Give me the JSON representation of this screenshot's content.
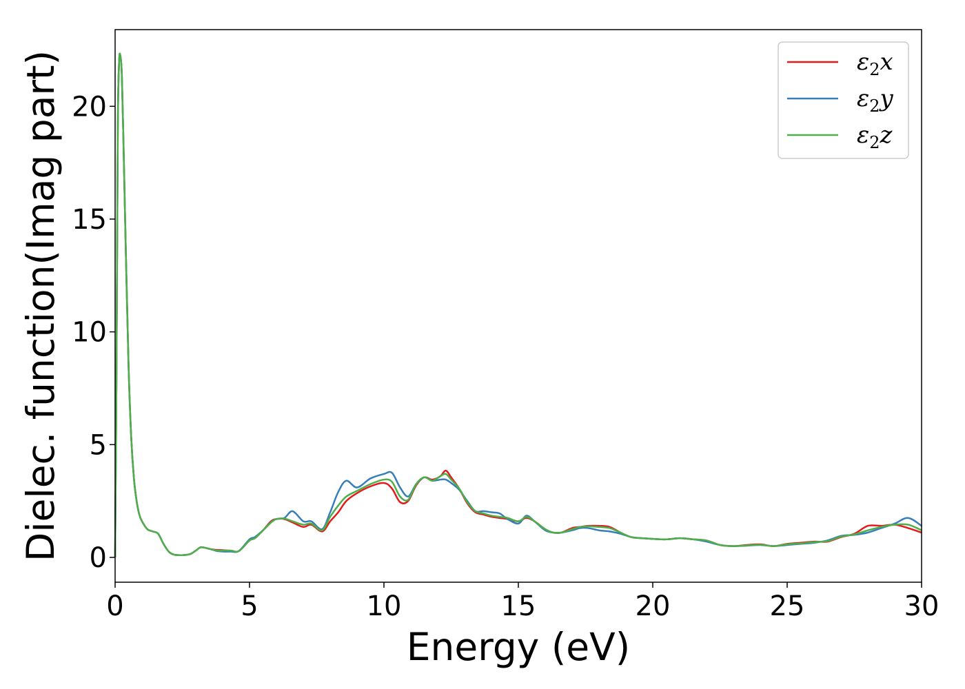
{
  "chart_data": {
    "type": "line",
    "title": "",
    "xlabel": "Energy (eV)",
    "ylabel": "Dielec. function(Imag part)",
    "xlim": [
      0,
      30
    ],
    "ylim": [
      -1.1,
      23.4
    ],
    "xticks": [
      "0",
      "5",
      "10",
      "15",
      "20",
      "25",
      "30"
    ],
    "yticks": [
      "0",
      "5",
      "10",
      "15",
      "20"
    ],
    "grid": false,
    "legend_position": "top-right",
    "series": [
      {
        "name_base": "ε",
        "name_sub": "2",
        "name_suffix": "x",
        "color": "#e41a1c",
        "x": [
          0,
          0.05,
          0.1,
          0.15,
          0.2,
          0.25,
          0.3,
          0.4,
          0.5,
          0.6,
          0.7,
          0.8,
          0.9,
          1.0,
          1.2,
          1.4,
          1.6,
          1.8,
          2.0,
          2.2,
          2.5,
          2.8,
          3.0,
          3.2,
          3.5,
          3.8,
          4.0,
          4.3,
          4.6,
          5.0,
          5.2,
          5.5,
          5.8,
          6.0,
          6.3,
          6.6,
          7.0,
          7.3,
          7.7,
          8.0,
          8.3,
          8.6,
          9.0,
          9.5,
          10.0,
          10.3,
          10.6,
          10.9,
          11.2,
          11.5,
          11.8,
          12.1,
          12.3,
          12.5,
          12.8,
          13.1,
          13.4,
          13.7,
          14.0,
          14.3,
          14.6,
          15.0,
          15.3,
          15.6,
          16.0,
          16.3,
          16.6,
          17.0,
          17.3,
          17.6,
          18.0,
          18.4,
          18.8,
          19.2,
          19.6,
          20.0,
          20.5,
          21.0,
          21.5,
          22.0,
          22.5,
          23.0,
          23.5,
          24.0,
          24.5,
          25.0,
          25.5,
          26.0,
          26.5,
          27.0,
          27.5,
          28.0,
          28.5,
          29.0,
          29.5,
          30.0
        ],
        "y": [
          0,
          8,
          19,
          22.0,
          22.2,
          21.4,
          19,
          13.5,
          8.5,
          5.3,
          3.5,
          2.5,
          1.9,
          1.6,
          1.25,
          1.15,
          1.05,
          0.6,
          0.25,
          0.12,
          0.1,
          0.15,
          0.3,
          0.45,
          0.38,
          0.33,
          0.32,
          0.3,
          0.28,
          0.75,
          0.85,
          1.2,
          1.6,
          1.7,
          1.7,
          1.55,
          1.35,
          1.45,
          1.15,
          1.6,
          2.0,
          2.5,
          2.85,
          3.15,
          3.3,
          3.05,
          2.45,
          2.5,
          3.2,
          3.55,
          3.45,
          3.6,
          3.85,
          3.55,
          3.05,
          2.4,
          2.0,
          1.9,
          1.8,
          1.75,
          1.7,
          1.6,
          1.75,
          1.6,
          1.25,
          1.1,
          1.1,
          1.3,
          1.35,
          1.4,
          1.4,
          1.35,
          1.1,
          0.9,
          0.85,
          0.82,
          0.8,
          0.85,
          0.8,
          0.75,
          0.55,
          0.5,
          0.55,
          0.58,
          0.5,
          0.6,
          0.65,
          0.7,
          0.7,
          0.9,
          1.05,
          1.4,
          1.4,
          1.45,
          1.3,
          1.1
        ]
      },
      {
        "name_base": "ε",
        "name_sub": "2",
        "name_suffix": "y",
        "color": "#377eb8",
        "x": [
          0,
          0.05,
          0.1,
          0.15,
          0.2,
          0.25,
          0.3,
          0.4,
          0.5,
          0.6,
          0.7,
          0.8,
          0.9,
          1.0,
          1.2,
          1.4,
          1.6,
          1.8,
          2.0,
          2.2,
          2.5,
          2.8,
          3.0,
          3.2,
          3.5,
          3.8,
          4.0,
          4.3,
          4.6,
          5.0,
          5.2,
          5.5,
          5.8,
          6.0,
          6.3,
          6.6,
          7.0,
          7.3,
          7.7,
          8.0,
          8.3,
          8.6,
          9.0,
          9.5,
          10.0,
          10.3,
          10.6,
          10.9,
          11.2,
          11.5,
          11.8,
          12.1,
          12.3,
          12.5,
          12.8,
          13.1,
          13.4,
          13.7,
          14.0,
          14.3,
          14.6,
          15.0,
          15.3,
          15.6,
          16.0,
          16.3,
          16.6,
          17.0,
          17.3,
          17.6,
          18.0,
          18.4,
          18.8,
          19.2,
          19.6,
          20.0,
          20.5,
          21.0,
          21.5,
          22.0,
          22.5,
          23.0,
          23.5,
          24.0,
          24.5,
          25.0,
          25.5,
          26.0,
          26.5,
          27.0,
          27.5,
          28.0,
          28.5,
          29.0,
          29.5,
          30.0
        ],
        "y": [
          0,
          8,
          19,
          22.0,
          22.2,
          21.4,
          19,
          13.5,
          8.5,
          5.3,
          3.5,
          2.5,
          1.9,
          1.6,
          1.25,
          1.15,
          1.05,
          0.6,
          0.25,
          0.12,
          0.1,
          0.15,
          0.3,
          0.45,
          0.38,
          0.28,
          0.26,
          0.26,
          0.28,
          0.8,
          0.9,
          1.2,
          1.55,
          1.7,
          1.75,
          2.05,
          1.6,
          1.6,
          1.25,
          2.0,
          2.9,
          3.4,
          3.1,
          3.5,
          3.7,
          3.75,
          3.1,
          2.7,
          3.25,
          3.55,
          3.4,
          3.45,
          3.45,
          3.3,
          3.0,
          2.5,
          2.05,
          2.05,
          2.0,
          1.95,
          1.7,
          1.5,
          1.85,
          1.6,
          1.2,
          1.1,
          1.1,
          1.2,
          1.3,
          1.3,
          1.2,
          1.15,
          1.05,
          0.9,
          0.85,
          0.82,
          0.8,
          0.85,
          0.8,
          0.7,
          0.55,
          0.5,
          0.52,
          0.55,
          0.5,
          0.55,
          0.6,
          0.65,
          0.75,
          0.95,
          1.0,
          1.1,
          1.3,
          1.5,
          1.75,
          1.4
        ]
      },
      {
        "name_base": "ε",
        "name_sub": "2",
        "name_suffix": "z",
        "color": "#4daf4a",
        "x": [
          0,
          0.05,
          0.1,
          0.15,
          0.2,
          0.25,
          0.3,
          0.4,
          0.5,
          0.6,
          0.7,
          0.8,
          0.9,
          1.0,
          1.2,
          1.4,
          1.6,
          1.8,
          2.0,
          2.2,
          2.5,
          2.8,
          3.0,
          3.2,
          3.5,
          3.8,
          4.0,
          4.3,
          4.6,
          5.0,
          5.2,
          5.5,
          5.8,
          6.0,
          6.3,
          6.6,
          7.0,
          7.3,
          7.7,
          8.0,
          8.3,
          8.6,
          9.0,
          9.5,
          10.0,
          10.3,
          10.6,
          10.9,
          11.2,
          11.5,
          11.8,
          12.1,
          12.3,
          12.5,
          12.8,
          13.1,
          13.4,
          13.7,
          14.0,
          14.3,
          14.6,
          15.0,
          15.3,
          15.6,
          16.0,
          16.3,
          16.6,
          17.0,
          17.3,
          17.6,
          18.0,
          18.4,
          18.8,
          19.2,
          19.6,
          20.0,
          20.5,
          21.0,
          21.5,
          22.0,
          22.5,
          23.0,
          23.5,
          24.0,
          24.5,
          25.0,
          25.5,
          26.0,
          26.5,
          27.0,
          27.5,
          28.0,
          28.5,
          29.0,
          29.5,
          30.0
        ],
        "y": [
          0,
          8,
          19,
          22.0,
          22.2,
          21.4,
          19,
          13.5,
          8.5,
          5.3,
          3.5,
          2.5,
          1.9,
          1.6,
          1.25,
          1.15,
          1.05,
          0.6,
          0.25,
          0.12,
          0.1,
          0.15,
          0.3,
          0.45,
          0.38,
          0.3,
          0.3,
          0.3,
          0.28,
          0.75,
          0.85,
          1.2,
          1.55,
          1.7,
          1.72,
          1.6,
          1.45,
          1.5,
          1.2,
          1.8,
          2.3,
          2.7,
          2.95,
          3.25,
          3.45,
          3.35,
          2.7,
          2.55,
          3.25,
          3.55,
          3.4,
          3.6,
          3.7,
          3.45,
          3.05,
          2.45,
          2.05,
          1.95,
          1.85,
          1.8,
          1.75,
          1.6,
          1.8,
          1.6,
          1.25,
          1.1,
          1.1,
          1.25,
          1.35,
          1.38,
          1.35,
          1.3,
          1.1,
          0.9,
          0.85,
          0.82,
          0.8,
          0.85,
          0.8,
          0.75,
          0.55,
          0.5,
          0.53,
          0.56,
          0.5,
          0.58,
          0.62,
          0.68,
          0.72,
          0.92,
          1.02,
          1.2,
          1.35,
          1.45,
          1.45,
          1.2
        ]
      }
    ]
  }
}
